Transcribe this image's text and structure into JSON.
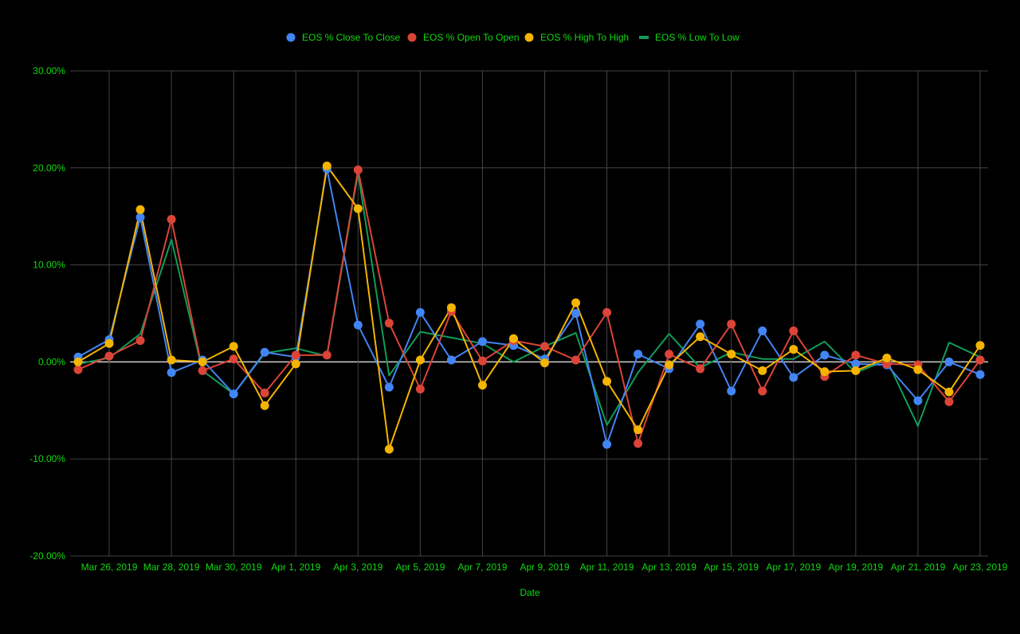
{
  "chart_data": {
    "type": "line",
    "title": "",
    "xlabel": "Date",
    "ylabel": "",
    "ylim": [
      -20,
      30
    ],
    "yticks": [
      {
        "value": 30,
        "label": "30.00%"
      },
      {
        "value": 20,
        "label": "20.00%"
      },
      {
        "value": 10,
        "label": "10.00%"
      },
      {
        "value": 0,
        "label": "0.00%"
      },
      {
        "value": -10,
        "label": "-10.00%"
      },
      {
        "value": -20,
        "label": "-20.00%"
      }
    ],
    "x": [
      "2019-03-25",
      "2019-03-26",
      "2019-03-27",
      "2019-03-28",
      "2019-03-29",
      "2019-03-30",
      "2019-03-31",
      "2019-04-01",
      "2019-04-02",
      "2019-04-03",
      "2019-04-04",
      "2019-04-05",
      "2019-04-06",
      "2019-04-07",
      "2019-04-08",
      "2019-04-09",
      "2019-04-10",
      "2019-04-11",
      "2019-04-12",
      "2019-04-13",
      "2019-04-14",
      "2019-04-15",
      "2019-04-16",
      "2019-04-17",
      "2019-04-18",
      "2019-04-19",
      "2019-04-20",
      "2019-04-21",
      "2019-04-22",
      "2019-04-23"
    ],
    "xticks": [
      {
        "date": "2019-03-26",
        "label": "Mar 26, 2019"
      },
      {
        "date": "2019-03-28",
        "label": "Mar 28, 2019"
      },
      {
        "date": "2019-03-30",
        "label": "Mar 30, 2019"
      },
      {
        "date": "2019-04-01",
        "label": "Apr 1, 2019"
      },
      {
        "date": "2019-04-03",
        "label": "Apr 3, 2019"
      },
      {
        "date": "2019-04-05",
        "label": "Apr 5, 2019"
      },
      {
        "date": "2019-04-07",
        "label": "Apr 7, 2019"
      },
      {
        "date": "2019-04-09",
        "label": "Apr 9, 2019"
      },
      {
        "date": "2019-04-11",
        "label": "Apr 11, 2019"
      },
      {
        "date": "2019-04-13",
        "label": "Apr 13, 2019"
      },
      {
        "date": "2019-04-15",
        "label": "Apr 15, 2019"
      },
      {
        "date": "2019-04-17",
        "label": "Apr 17, 2019"
      },
      {
        "date": "2019-04-19",
        "label": "Apr 19, 2019"
      },
      {
        "date": "2019-04-21",
        "label": "Apr 21, 2019"
      },
      {
        "date": "2019-04-23",
        "label": "Apr 23, 2019"
      }
    ],
    "legend_position": "top",
    "grid": true,
    "series": [
      {
        "name": "EOS % Close To Close",
        "color": "#4285f4",
        "markers": true,
        "values": [
          0.5,
          2.3,
          14.9,
          -1.1,
          0.2,
          -3.3,
          1.0,
          0.5,
          19.9,
          3.8,
          -2.6,
          5.1,
          0.2,
          2.1,
          1.7,
          0.3,
          5.0,
          -8.5,
          0.8,
          -0.7,
          3.9,
          -3.0,
          3.2,
          -1.6,
          0.7,
          -0.2,
          -0.3,
          -4.0,
          0.0,
          -1.3
        ]
      },
      {
        "name": "EOS % Open To Open",
        "color": "#db4437",
        "markers": true,
        "values": [
          -0.8,
          0.6,
          2.2,
          14.7,
          -0.9,
          0.3,
          -3.2,
          0.7,
          0.7,
          19.8,
          4.0,
          -2.8,
          5.2,
          0.1,
          2.2,
          1.6,
          0.2,
          5.1,
          -8.4,
          0.8,
          -0.7,
          3.9,
          -3.0,
          3.2,
          -1.5,
          0.7,
          -0.2,
          -0.3,
          -4.1,
          0.2
        ]
      },
      {
        "name": "EOS % High To High",
        "color": "#f4b400",
        "markers": true,
        "values": [
          0.0,
          1.9,
          15.7,
          0.2,
          0.0,
          1.6,
          -4.5,
          -0.2,
          20.2,
          15.8,
          -9.0,
          0.2,
          5.6,
          -2.4,
          2.4,
          -0.1,
          6.1,
          -2.0,
          -7.0,
          -0.3,
          2.6,
          0.8,
          -0.9,
          1.3,
          -1.0,
          -0.9,
          0.4,
          -0.8,
          -3.1,
          1.7
        ]
      },
      {
        "name": "EOS % Low To Low",
        "color": "#0f9d58",
        "markers": false,
        "values": [
          -0.2,
          0.4,
          2.9,
          12.6,
          -0.9,
          -3.3,
          0.9,
          1.4,
          0.6,
          19.5,
          -1.4,
          3.1,
          2.5,
          1.9,
          0.0,
          1.6,
          3.0,
          -6.5,
          -1.1,
          2.9,
          -0.6,
          1.0,
          0.3,
          0.3,
          2.1,
          -1.1,
          0.2,
          -6.6,
          2.0,
          0.5
        ]
      }
    ],
    "colors": {
      "background": "#000000",
      "text": "#0fda0f",
      "gridline": "#444444",
      "zero_line": "#d0d0d0"
    }
  }
}
